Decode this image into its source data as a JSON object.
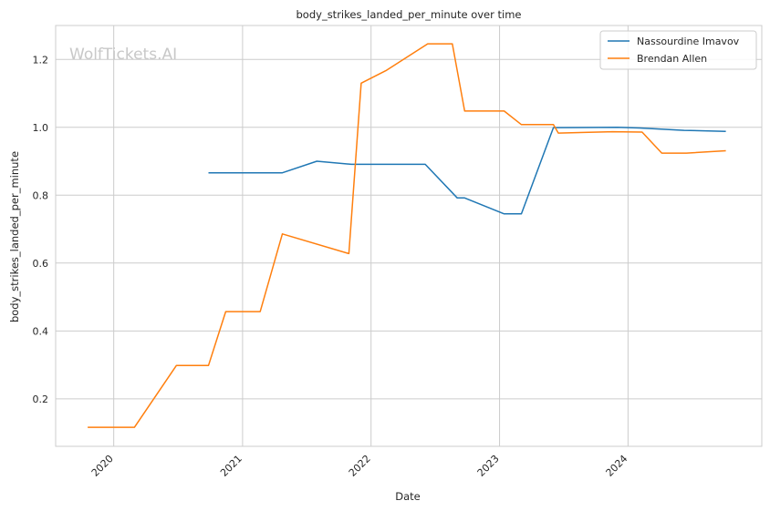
{
  "chart_data": {
    "type": "line",
    "title": "body_strikes_landed_per_minute over time",
    "xlabel": "Date",
    "ylabel": "body_strikes_landed_per_minute",
    "watermark": "WolfTickets.AI",
    "x_ticks": [
      "2020",
      "2021",
      "2022",
      "2023",
      "2024"
    ],
    "y_ticks": [
      "0.2",
      "0.4",
      "0.6",
      "0.8",
      "1.0",
      "1.2"
    ],
    "xlim": [
      "2019-07-20",
      "2025-01-15"
    ],
    "ylim": [
      0.06,
      1.3
    ],
    "grid": true,
    "legend_position": "top-right",
    "series": [
      {
        "name": "Nassourdine Imavov",
        "color": "#1f77b4",
        "points": [
          {
            "x": "2020-09-26",
            "y": 0.866
          },
          {
            "x": "2021-04-24",
            "y": 0.866
          },
          {
            "x": "2021-07-31",
            "y": 0.9
          },
          {
            "x": "2021-11-06",
            "y": 0.891
          },
          {
            "x": "2022-06-04",
            "y": 0.891
          },
          {
            "x": "2022-09-03",
            "y": 0.792
          },
          {
            "x": "2022-09-24",
            "y": 0.792
          },
          {
            "x": "2023-01-14",
            "y": 0.745
          },
          {
            "x": "2023-03-04",
            "y": 0.745
          },
          {
            "x": "2023-06-03",
            "y": 0.999
          },
          {
            "x": "2023-12-02",
            "y": 1.0
          },
          {
            "x": "2024-02-03",
            "y": 0.998
          },
          {
            "x": "2024-06-08",
            "y": 0.991
          },
          {
            "x": "2024-10-05",
            "y": 0.988
          }
        ]
      },
      {
        "name": "Brendan Allen",
        "color": "#ff7f0e",
        "points": [
          {
            "x": "2019-10-19",
            "y": 0.116
          },
          {
            "x": "2020-02-29",
            "y": 0.116
          },
          {
            "x": "2020-06-27",
            "y": 0.298
          },
          {
            "x": "2020-09-26",
            "y": 0.298
          },
          {
            "x": "2020-11-14",
            "y": 0.457
          },
          {
            "x": "2021-02-20",
            "y": 0.457
          },
          {
            "x": "2021-04-24",
            "y": 0.686
          },
          {
            "x": "2021-10-30",
            "y": 0.628
          },
          {
            "x": "2021-12-04",
            "y": 1.13
          },
          {
            "x": "2022-02-12",
            "y": 1.167
          },
          {
            "x": "2022-06-11",
            "y": 1.246
          },
          {
            "x": "2022-08-20",
            "y": 1.246
          },
          {
            "x": "2022-09-24",
            "y": 1.048
          },
          {
            "x": "2023-01-14",
            "y": 1.048
          },
          {
            "x": "2023-03-04",
            "y": 1.008
          },
          {
            "x": "2023-06-03",
            "y": 1.008
          },
          {
            "x": "2023-06-17",
            "y": 0.983
          },
          {
            "x": "2023-11-18",
            "y": 0.987
          },
          {
            "x": "2024-02-10",
            "y": 0.986
          },
          {
            "x": "2024-04-06",
            "y": 0.924
          },
          {
            "x": "2024-06-15",
            "y": 0.924
          },
          {
            "x": "2024-10-05",
            "y": 0.931
          }
        ]
      }
    ]
  }
}
